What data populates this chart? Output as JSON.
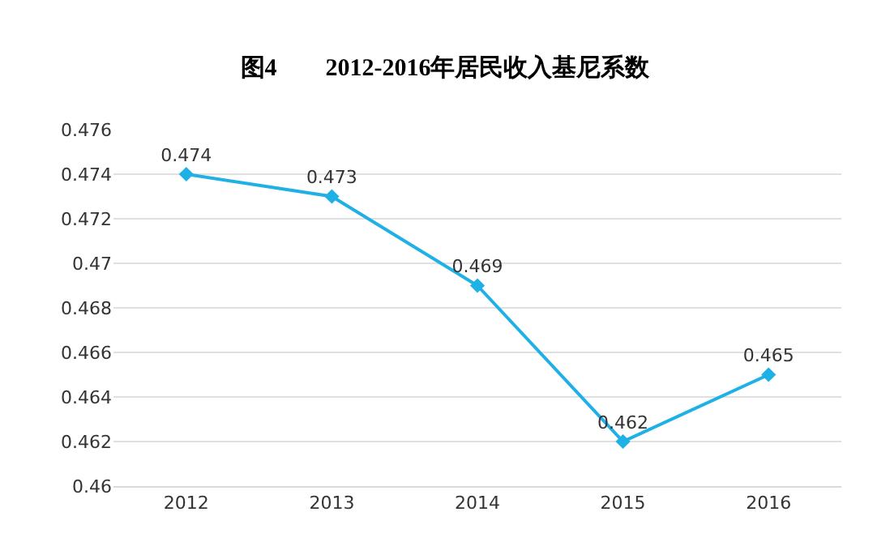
{
  "chart_data": {
    "type": "line",
    "title": "图4　　2012-2016年居民收入基尼系数",
    "categories": [
      "2012",
      "2013",
      "2014",
      "2015",
      "2016"
    ],
    "series": [
      {
        "color": "#1fb0e6",
        "values": [
          0.474,
          0.473,
          0.469,
          0.462,
          0.465
        ]
      }
    ],
    "ylim": [
      0.46,
      0.476
    ],
    "yticks": [
      0.46,
      0.462,
      0.464,
      0.466,
      0.468,
      0.47,
      0.472,
      0.474,
      0.476
    ],
    "grid": "y",
    "marker": "diamond",
    "line_style": "solid",
    "data_labels": true,
    "legend": false
  }
}
